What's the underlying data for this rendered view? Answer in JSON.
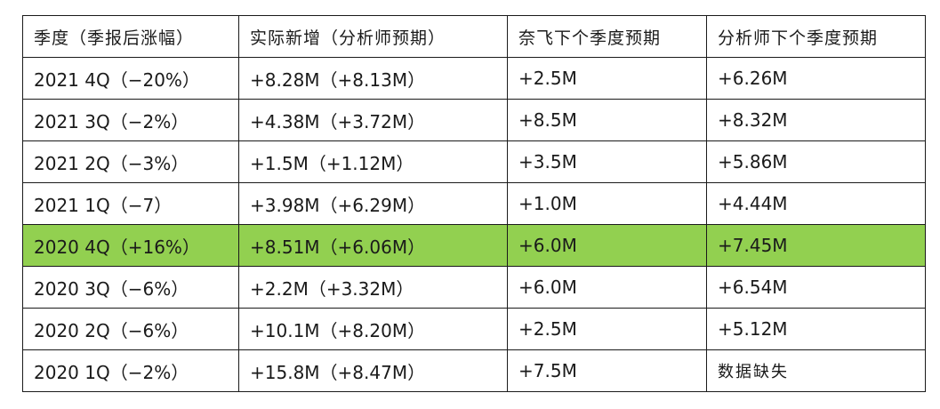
{
  "table": {
    "headers": [
      "季度（季报后涨幅）",
      "实际新增（分析师预期）",
      "奈飞下个季度预期",
      "分析师下个季度预期"
    ],
    "rows": [
      [
        "2021 4Q（−20%）",
        "+8.28M（+8.13M）",
        "+2.5M",
        "+6.26M"
      ],
      [
        "2021 3Q（−2%）",
        "+4.38M（+3.72M）",
        "+8.5M",
        "+8.32M"
      ],
      [
        "2021 2Q（−3%）",
        "+1.5M（+1.12M）",
        "+3.5M",
        "+5.86M"
      ],
      [
        "2021 1Q（−7）",
        "+3.98M（+6.29M）",
        "+1.0M",
        "+4.44M"
      ],
      [
        "2020  4Q（+16%）",
        "+8.51M（+6.06M）",
        "+6.0M",
        "+7.45M"
      ],
      [
        "2020 3Q（−6%）",
        "+2.2M（+3.32M）",
        "+6.0M",
        "+6.54M"
      ],
      [
        "2020 2Q（−6%）",
        "+10.1M（+8.20M）",
        "+2.5M",
        "+5.12M"
      ],
      [
        "2020 1Q（−2%）",
        "+15.8M（+8.47M）",
        "+7.5M",
        "数据缺失"
      ]
    ],
    "highlight_row_index": 4,
    "highlight_color": "#92d050",
    "border_color": "#1a1a1a"
  }
}
